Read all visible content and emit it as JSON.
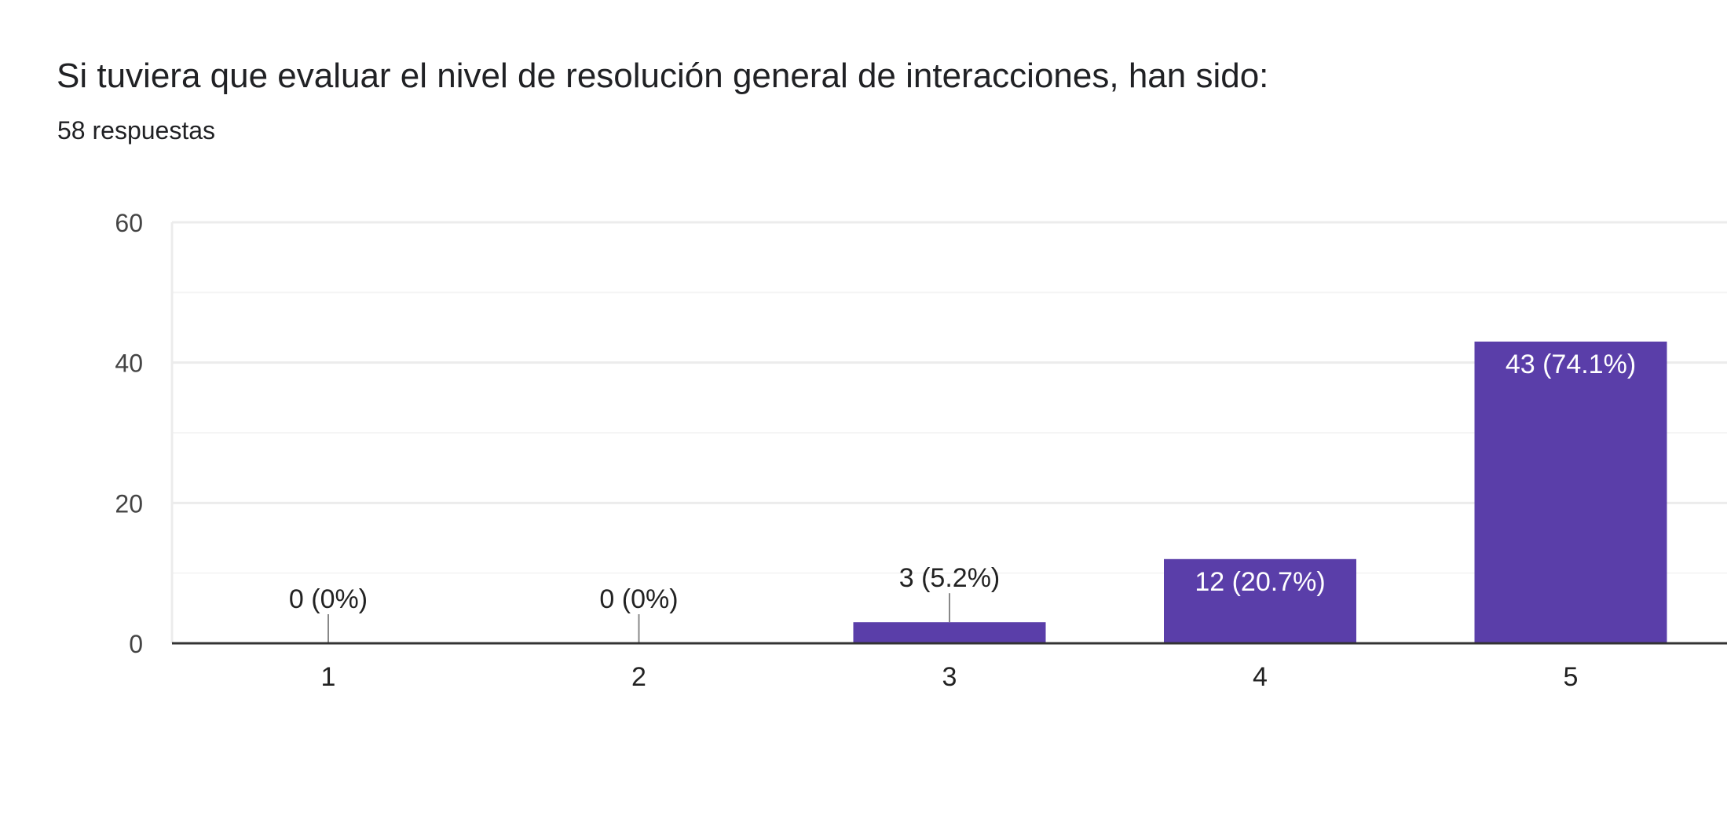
{
  "header": {
    "title": "Si tuviera que evaluar el nivel de resolución general de interacciones, han sido:",
    "subtitle": "58 respuestas"
  },
  "colors": {
    "bar": "#5a3ea9",
    "grid": "#ececec",
    "axis": "#333333"
  },
  "chart_data": {
    "type": "bar",
    "categories": [
      "1",
      "2",
      "3",
      "4",
      "5"
    ],
    "values": [
      0,
      0,
      3,
      12,
      43
    ],
    "data_labels": [
      "0 (0%)",
      "0 (0%)",
      "3 (5.2%)",
      "12 (20.7%)",
      "43 (74.1%)"
    ],
    "ylim": [
      0,
      60
    ],
    "yticks": [
      0,
      20,
      40,
      60
    ],
    "grid": true,
    "xlabel": "",
    "ylabel": ""
  }
}
